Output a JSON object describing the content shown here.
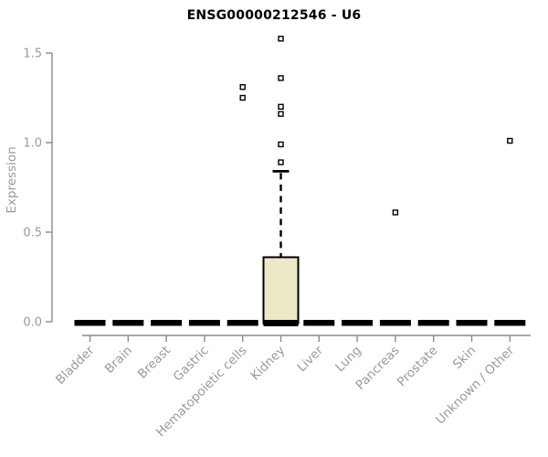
{
  "chart_data": {
    "type": "boxplot",
    "title": "ENSG00000212546 - U6",
    "ylabel": "Expression",
    "xlabel": "",
    "ylim": [
      0,
      1.6
    ],
    "ytick_values": [
      0,
      0.5,
      1.0,
      1.5
    ],
    "ytick_labels": [
      "0.0",
      "0.5",
      "1.0",
      "1.5"
    ],
    "grid": "off",
    "legend": "none",
    "categories": [
      "Bladder",
      "Brain",
      "Breast",
      "Gastric",
      "Hematopoietic cells",
      "Kidney",
      "Liver",
      "Lung",
      "Pancreas",
      "Prostate",
      "Skin",
      "Unknown / Other"
    ],
    "boxes": [
      {
        "category": "Bladder",
        "whisker_low": 0,
        "q1": 0,
        "median": 0,
        "q3": 0,
        "whisker_high": 0,
        "outliers": []
      },
      {
        "category": "Brain",
        "whisker_low": 0,
        "q1": 0,
        "median": 0,
        "q3": 0,
        "whisker_high": 0,
        "outliers": []
      },
      {
        "category": "Breast",
        "whisker_low": 0,
        "q1": 0,
        "median": 0,
        "q3": 0,
        "whisker_high": 0,
        "outliers": []
      },
      {
        "category": "Gastric",
        "whisker_low": 0,
        "q1": 0,
        "median": 0,
        "q3": 0,
        "whisker_high": 0,
        "outliers": []
      },
      {
        "category": "Hematopoietic cells",
        "whisker_low": 0,
        "q1": 0,
        "median": 0,
        "q3": 0,
        "whisker_high": 0,
        "outliers": [
          1.25,
          1.31
        ]
      },
      {
        "category": "Kidney",
        "whisker_low": 0,
        "q1": 0,
        "median": 0,
        "q3": 0.36,
        "whisker_high": 0.84,
        "outliers": [
          0.89,
          0.99,
          1.16,
          1.2,
          1.36,
          1.58
        ]
      },
      {
        "category": "Liver",
        "whisker_low": 0,
        "q1": 0,
        "median": 0,
        "q3": 0,
        "whisker_high": 0,
        "outliers": []
      },
      {
        "category": "Lung",
        "whisker_low": 0,
        "q1": 0,
        "median": 0,
        "q3": 0,
        "whisker_high": 0,
        "outliers": []
      },
      {
        "category": "Pancreas",
        "whisker_low": 0,
        "q1": 0,
        "median": 0,
        "q3": 0,
        "whisker_high": 0,
        "outliers": [
          0.61
        ]
      },
      {
        "category": "Prostate",
        "whisker_low": 0,
        "q1": 0,
        "median": 0,
        "q3": 0,
        "whisker_high": 0,
        "outliers": []
      },
      {
        "category": "Skin",
        "whisker_low": 0,
        "q1": 0,
        "median": 0,
        "q3": 0,
        "whisker_high": 0,
        "outliers": []
      },
      {
        "category": "Unknown / Other",
        "whisker_low": 0,
        "q1": 0,
        "median": 0,
        "q3": 0,
        "whisker_high": 0,
        "outliers": [
          1.01
        ]
      }
    ],
    "colors": {
      "background": "#ffffff",
      "title": "#000000",
      "box_fill": "#ede8c8",
      "box_stroke": "#000000",
      "median_bar": "#000000",
      "whisker": "#000000",
      "outlier_fill": "#ffffff",
      "outlier_stroke": "#000000",
      "axis": "#8a8a8a",
      "tick_label": "#9a9a9a"
    }
  }
}
